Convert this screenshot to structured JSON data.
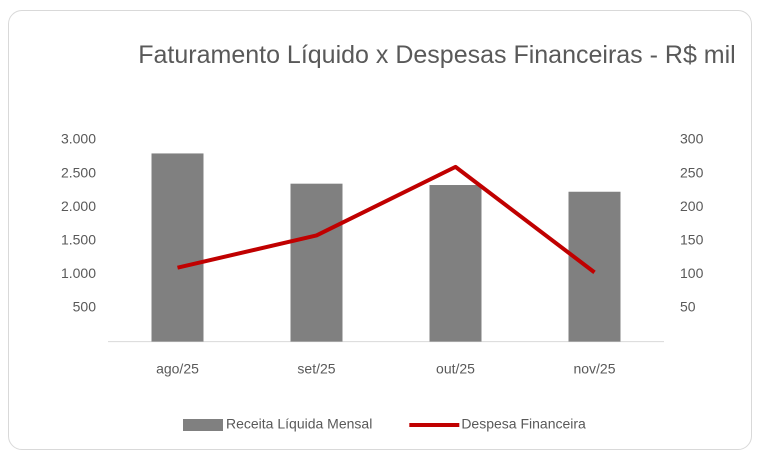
{
  "chart_data": {
    "type": "bar_line",
    "title": "Faturamento Líquido x Despesas Financeiras - R$ mil",
    "categories": [
      "ago/25",
      "set/25",
      "out/25",
      "nov/25"
    ],
    "series": [
      {
        "name": "Receita Líquida Mensal",
        "color": "#808080",
        "type": "bar",
        "values": [
          2800,
          2350,
          2330,
          2230
        ]
      },
      {
        "name": "Despesa Financeira",
        "color": "#c00000",
        "type": "line",
        "axis": "y2",
        "values": [
          110,
          158,
          260,
          103
        ]
      }
    ],
    "ylim": [
      0,
      3000
    ],
    "yticks": [
      500,
      {
        "value": 1000,
        "label": "1.000"
      },
      {
        "value": 1500,
        "label": "1.500"
      },
      {
        "value": 2000,
        "label": "2.000"
      },
      {
        "value": 2500,
        "label": "2.500"
      },
      {
        "value": 3000,
        "label": "3.000"
      }
    ],
    "y2lim": [
      0,
      300
    ],
    "y2ticks": [
      50,
      100,
      150,
      200,
      250,
      300
    ],
    "grid": false,
    "legend": "bottom"
  }
}
